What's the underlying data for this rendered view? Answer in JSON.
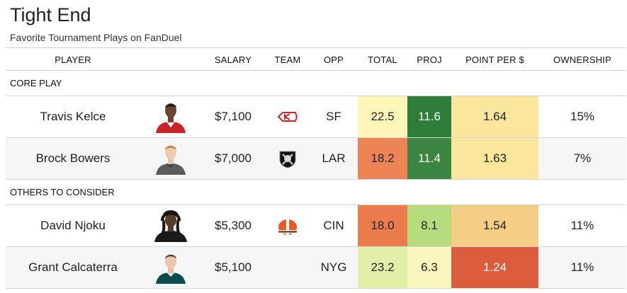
{
  "page": {
    "title": "Tight End",
    "subtitle": "Favorite Tournament Plays on FanDuel"
  },
  "headers": {
    "player": "PLAYER",
    "salary": "SALARY",
    "team": "TEAM",
    "opp": "OPP",
    "total": "TOTAL",
    "proj": "PROJ",
    "ppd": "POINT PER $",
    "ownership": "OWNERSHIP"
  },
  "groups": {
    "core": {
      "label": "CORE PLAY",
      "rows": [
        {
          "player": "Travis Kelce",
          "salary": "$7,100",
          "team_icon": "chiefs-logo-icon",
          "opp": "SF",
          "total": "22.5",
          "proj": "11.6",
          "ppd": "1.64",
          "ownership": "15%",
          "colors": {
            "total": "#fdf6b8",
            "proj": "#2f7d3a",
            "ppd": "#fae69c"
          }
        },
        {
          "player": "Brock Bowers",
          "salary": "$7,000",
          "team_icon": "raiders-logo-icon",
          "opp": "LAR",
          "total": "18.2",
          "proj": "11.4",
          "ppd": "1.63",
          "ownership": "7%",
          "colors": {
            "total": "#ec8456",
            "proj": "#3b8442",
            "ppd": "#fae69c"
          }
        }
      ]
    },
    "others": {
      "label": "OTHERS TO CONSIDER",
      "rows": [
        {
          "player": "David Njoku",
          "salary": "$5,300",
          "team_icon": "browns-logo-icon",
          "opp": "CIN",
          "total": "18.0",
          "proj": "8.1",
          "ppd": "1.54",
          "ownership": "11%",
          "colors": {
            "total": "#ea7c4e",
            "proj": "#b7dc7e",
            "ppd": "#f6cd84"
          }
        },
        {
          "player": "Grant Calcaterra",
          "salary": "$5,100",
          "team_icon": "eagles-logo-icon",
          "opp": "NYG",
          "total": "23.2",
          "proj": "6.3",
          "ppd": "1.24",
          "ownership": "11%",
          "colors": {
            "total": "#e3eea8",
            "proj": "#f9f7be",
            "ppd": "#da5c3c"
          }
        }
      ]
    }
  },
  "text_colors": {
    "dark_bg_text": "#ffffff",
    "default": "#222222"
  }
}
